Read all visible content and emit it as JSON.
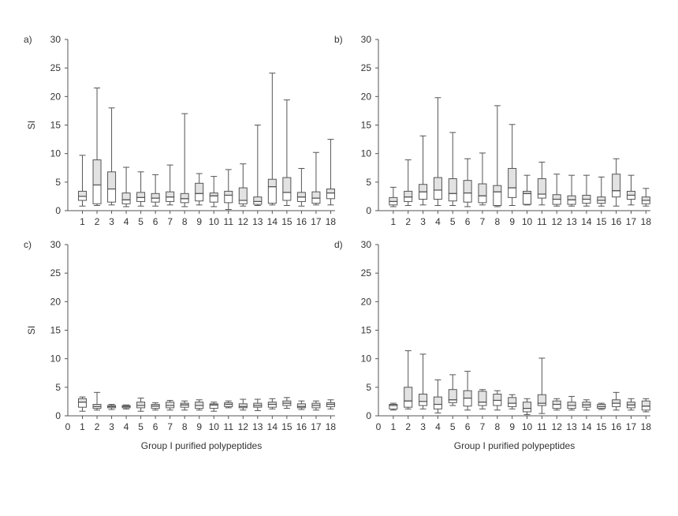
{
  "figure": {
    "y_axis_label": "SI",
    "x_axis_label": "Group I purified polypeptides"
  },
  "colors": {
    "box_lower_fill": "#ffffff",
    "box_upper_fill": "#e2e2e2",
    "stroke": "#555555",
    "background": "#ffffff"
  },
  "chart_data": [
    {
      "panel": "a)",
      "type": "box",
      "ylabel": "SI",
      "xlabel": "",
      "ylim": [
        0,
        30
      ],
      "yticks": [
        0,
        5,
        10,
        15,
        20,
        25,
        30
      ],
      "xticks": [
        "1",
        "2",
        "3",
        "4",
        "5",
        "6",
        "7",
        "8",
        "9",
        "10",
        "11",
        "12",
        "13",
        "14",
        "15",
        "16",
        "17",
        "18"
      ],
      "categories": [
        "1",
        "2",
        "3",
        "4",
        "5",
        "6",
        "7",
        "8",
        "9",
        "10",
        "11",
        "12",
        "13",
        "14",
        "15",
        "16",
        "17",
        "18"
      ],
      "boxes": [
        {
          "min": 0.8,
          "q1": 1.8,
          "median": 2.5,
          "q3": 3.4,
          "max": 9.7
        },
        {
          "min": 0.9,
          "q1": 1.2,
          "median": 4.5,
          "q3": 8.9,
          "max": 21.5
        },
        {
          "min": 1.0,
          "q1": 1.5,
          "median": 3.8,
          "q3": 6.8,
          "max": 18.0
        },
        {
          "min": 0.7,
          "q1": 1.2,
          "median": 1.9,
          "q3": 3.1,
          "max": 7.6
        },
        {
          "min": 0.8,
          "q1": 1.6,
          "median": 2.3,
          "q3": 3.2,
          "max": 6.8
        },
        {
          "min": 0.8,
          "q1": 1.5,
          "median": 2.2,
          "q3": 3.0,
          "max": 6.3
        },
        {
          "min": 1.0,
          "q1": 1.6,
          "median": 2.4,
          "q3": 3.3,
          "max": 8.0
        },
        {
          "min": 0.7,
          "q1": 1.4,
          "median": 2.1,
          "q3": 3.0,
          "max": 17.0
        },
        {
          "min": 1.0,
          "q1": 1.7,
          "median": 3.0,
          "q3": 4.8,
          "max": 6.5
        },
        {
          "min": 0.7,
          "q1": 1.5,
          "median": 2.6,
          "q3": 3.1,
          "max": 6.0
        },
        {
          "min": 0.2,
          "q1": 1.4,
          "median": 2.7,
          "q3": 3.4,
          "max": 7.2
        },
        {
          "min": 0.8,
          "q1": 1.2,
          "median": 1.8,
          "q3": 4.0,
          "max": 8.2
        },
        {
          "min": 0.9,
          "q1": 1.1,
          "median": 1.6,
          "q3": 2.4,
          "max": 15.0
        },
        {
          "min": 1.0,
          "q1": 1.3,
          "median": 4.2,
          "q3": 5.5,
          "max": 24.1
        },
        {
          "min": 0.9,
          "q1": 1.8,
          "median": 3.2,
          "q3": 5.8,
          "max": 19.4
        },
        {
          "min": 0.8,
          "q1": 1.6,
          "median": 2.4,
          "q3": 3.2,
          "max": 7.4
        },
        {
          "min": 1.0,
          "q1": 1.3,
          "median": 2.2,
          "q3": 3.3,
          "max": 10.2
        },
        {
          "min": 1.0,
          "q1": 2.1,
          "median": 3.1,
          "q3": 3.8,
          "max": 12.5
        }
      ]
    },
    {
      "panel": "b)",
      "type": "box",
      "ylabel": "",
      "xlabel": "",
      "ylim": [
        0,
        30
      ],
      "yticks": [
        0,
        5,
        10,
        15,
        20,
        25,
        30
      ],
      "xticks": [
        "1",
        "2",
        "3",
        "4",
        "5",
        "6",
        "7",
        "8",
        "9",
        "10",
        "11",
        "12",
        "13",
        "14",
        "15",
        "16",
        "17",
        "18"
      ],
      "categories": [
        "1",
        "2",
        "3",
        "4",
        "5",
        "6",
        "7",
        "8",
        "9",
        "10",
        "11",
        "12",
        "13",
        "14",
        "15",
        "16",
        "17",
        "18"
      ],
      "boxes": [
        {
          "min": 0.7,
          "q1": 1.0,
          "median": 1.6,
          "q3": 2.3,
          "max": 4.1
        },
        {
          "min": 0.9,
          "q1": 1.6,
          "median": 2.4,
          "q3": 3.4,
          "max": 8.9
        },
        {
          "min": 1.0,
          "q1": 2.0,
          "median": 3.3,
          "q3": 4.6,
          "max": 13.1
        },
        {
          "min": 0.9,
          "q1": 2.0,
          "median": 3.6,
          "q3": 5.8,
          "max": 19.8
        },
        {
          "min": 0.9,
          "q1": 1.7,
          "median": 3.0,
          "q3": 5.6,
          "max": 13.7
        },
        {
          "min": 0.7,
          "q1": 1.5,
          "median": 3.1,
          "q3": 5.3,
          "max": 9.1
        },
        {
          "min": 1.0,
          "q1": 1.4,
          "median": 2.6,
          "q3": 4.7,
          "max": 10.1
        },
        {
          "min": 0.7,
          "q1": 0.9,
          "median": 3.3,
          "q3": 4.4,
          "max": 18.4
        },
        {
          "min": 0.9,
          "q1": 2.3,
          "median": 4.0,
          "q3": 7.4,
          "max": 15.1
        },
        {
          "min": 1.0,
          "q1": 1.1,
          "median": 3.0,
          "q3": 3.4,
          "max": 6.2
        },
        {
          "min": 1.0,
          "q1": 2.2,
          "median": 2.9,
          "q3": 5.6,
          "max": 8.5
        },
        {
          "min": 0.8,
          "q1": 1.1,
          "median": 2.0,
          "q3": 2.8,
          "max": 6.4
        },
        {
          "min": 0.8,
          "q1": 1.1,
          "median": 1.9,
          "q3": 2.6,
          "max": 6.2
        },
        {
          "min": 0.8,
          "q1": 1.3,
          "median": 2.0,
          "q3": 2.7,
          "max": 6.2
        },
        {
          "min": 0.8,
          "q1": 1.3,
          "median": 1.8,
          "q3": 2.4,
          "max": 5.9
        },
        {
          "min": 0.8,
          "q1": 2.4,
          "median": 3.5,
          "q3": 6.4,
          "max": 9.1
        },
        {
          "min": 1.0,
          "q1": 2.0,
          "median": 2.7,
          "q3": 3.4,
          "max": 6.2
        },
        {
          "min": 0.8,
          "q1": 1.2,
          "median": 1.8,
          "q3": 2.4,
          "max": 3.9
        }
      ]
    },
    {
      "panel": "c)",
      "type": "box",
      "ylabel": "SI",
      "xlabel": "Group I purified polypeptides",
      "ylim": [
        0,
        30
      ],
      "yticks": [
        0,
        5,
        10,
        15,
        20,
        25,
        30
      ],
      "xticks": [
        "0",
        "1",
        "2",
        "3",
        "4",
        "5",
        "6",
        "7",
        "8",
        "9",
        "10",
        "11",
        "12",
        "13",
        "14",
        "15",
        "16",
        "17",
        "18"
      ],
      "categories": [
        "1",
        "2",
        "3",
        "4",
        "5",
        "6",
        "7",
        "8",
        "9",
        "10",
        "11",
        "12",
        "13",
        "14",
        "15",
        "16",
        "17",
        "18"
      ],
      "boxes": [
        {
          "min": 0.8,
          "q1": 1.5,
          "median": 2.4,
          "q3": 3.0,
          "max": 3.3
        },
        {
          "min": 1.0,
          "q1": 1.3,
          "median": 1.6,
          "q3": 2.0,
          "max": 4.1
        },
        {
          "min": 1.1,
          "q1": 1.4,
          "median": 1.6,
          "q3": 1.8,
          "max": 2.0
        },
        {
          "min": 1.2,
          "q1": 1.4,
          "median": 1.6,
          "q3": 1.8,
          "max": 1.9
        },
        {
          "min": 0.8,
          "q1": 1.4,
          "median": 1.8,
          "q3": 2.4,
          "max": 3.1
        },
        {
          "min": 1.0,
          "q1": 1.3,
          "median": 1.7,
          "q3": 2.0,
          "max": 2.3
        },
        {
          "min": 1.0,
          "q1": 1.4,
          "median": 1.8,
          "q3": 2.4,
          "max": 2.7
        },
        {
          "min": 1.0,
          "q1": 1.5,
          "median": 1.9,
          "q3": 2.2,
          "max": 2.6
        },
        {
          "min": 1.0,
          "q1": 1.3,
          "median": 1.8,
          "q3": 2.4,
          "max": 2.8
        },
        {
          "min": 0.8,
          "q1": 1.3,
          "median": 1.9,
          "q3": 2.1,
          "max": 2.4
        },
        {
          "min": 1.4,
          "q1": 1.6,
          "median": 2.0,
          "q3": 2.3,
          "max": 2.6
        },
        {
          "min": 1.0,
          "q1": 1.4,
          "median": 1.6,
          "q3": 2.1,
          "max": 2.9
        },
        {
          "min": 0.9,
          "q1": 1.5,
          "median": 1.8,
          "q3": 2.2,
          "max": 2.9
        },
        {
          "min": 1.2,
          "q1": 1.5,
          "median": 2.0,
          "q3": 2.4,
          "max": 3.0
        },
        {
          "min": 1.3,
          "q1": 1.8,
          "median": 2.2,
          "q3": 2.6,
          "max": 3.2
        },
        {
          "min": 1.1,
          "q1": 1.4,
          "median": 1.6,
          "q3": 2.1,
          "max": 2.6
        },
        {
          "min": 1.0,
          "q1": 1.4,
          "median": 1.8,
          "q3": 2.2,
          "max": 2.6
        },
        {
          "min": 1.2,
          "q1": 1.6,
          "median": 2.0,
          "q3": 2.3,
          "max": 2.8
        }
      ]
    },
    {
      "panel": "d)",
      "type": "box",
      "ylabel": "",
      "xlabel": "Group I purified polypeptides",
      "ylim": [
        0,
        30
      ],
      "yticks": [
        0,
        5,
        10,
        15,
        20,
        25,
        30
      ],
      "xticks": [
        "0",
        "1",
        "2",
        "3",
        "4",
        "5",
        "6",
        "7",
        "8",
        "9",
        "10",
        "11",
        "12",
        "13",
        "14",
        "15",
        "16",
        "17",
        "18"
      ],
      "categories": [
        "1",
        "2",
        "3",
        "4",
        "5",
        "6",
        "7",
        "8",
        "9",
        "10",
        "11",
        "12",
        "13",
        "14",
        "15",
        "16",
        "17",
        "18"
      ],
      "boxes": [
        {
          "min": 1.0,
          "q1": 1.2,
          "median": 1.8,
          "q3": 2.0,
          "max": 2.2
        },
        {
          "min": 1.2,
          "q1": 1.5,
          "median": 2.6,
          "q3": 5.0,
          "max": 11.4
        },
        {
          "min": 1.2,
          "q1": 1.8,
          "median": 2.5,
          "q3": 3.8,
          "max": 10.8
        },
        {
          "min": 0.5,
          "q1": 1.2,
          "median": 2.0,
          "q3": 3.3,
          "max": 6.3
        },
        {
          "min": 1.8,
          "q1": 2.3,
          "median": 2.8,
          "q3": 4.6,
          "max": 7.2
        },
        {
          "min": 1.0,
          "q1": 1.7,
          "median": 3.1,
          "q3": 4.4,
          "max": 7.8
        },
        {
          "min": 1.2,
          "q1": 1.8,
          "median": 2.4,
          "q3": 4.3,
          "max": 4.6
        },
        {
          "min": 1.0,
          "q1": 1.8,
          "median": 2.7,
          "q3": 3.8,
          "max": 4.4
        },
        {
          "min": 1.2,
          "q1": 1.6,
          "median": 2.2,
          "q3": 3.2,
          "max": 3.7
        },
        {
          "min": 0.2,
          "q1": 0.7,
          "median": 1.3,
          "q3": 2.4,
          "max": 3.0
        },
        {
          "min": 0.4,
          "q1": 1.8,
          "median": 2.2,
          "q3": 3.7,
          "max": 10.1
        },
        {
          "min": 1.0,
          "q1": 1.3,
          "median": 2.0,
          "q3": 2.6,
          "max": 3.0
        },
        {
          "min": 1.0,
          "q1": 1.3,
          "median": 1.8,
          "q3": 2.4,
          "max": 3.4
        },
        {
          "min": 1.0,
          "q1": 1.5,
          "median": 1.9,
          "q3": 2.4,
          "max": 2.8
        },
        {
          "min": 1.1,
          "q1": 1.3,
          "median": 1.6,
          "q3": 2.0,
          "max": 2.2
        },
        {
          "min": 1.0,
          "q1": 1.6,
          "median": 2.2,
          "q3": 2.8,
          "max": 4.1
        },
        {
          "min": 1.0,
          "q1": 1.4,
          "median": 1.9,
          "q3": 2.4,
          "max": 3.0
        },
        {
          "min": 0.7,
          "q1": 1.0,
          "median": 1.7,
          "q3": 2.6,
          "max": 3.0
        }
      ]
    }
  ]
}
